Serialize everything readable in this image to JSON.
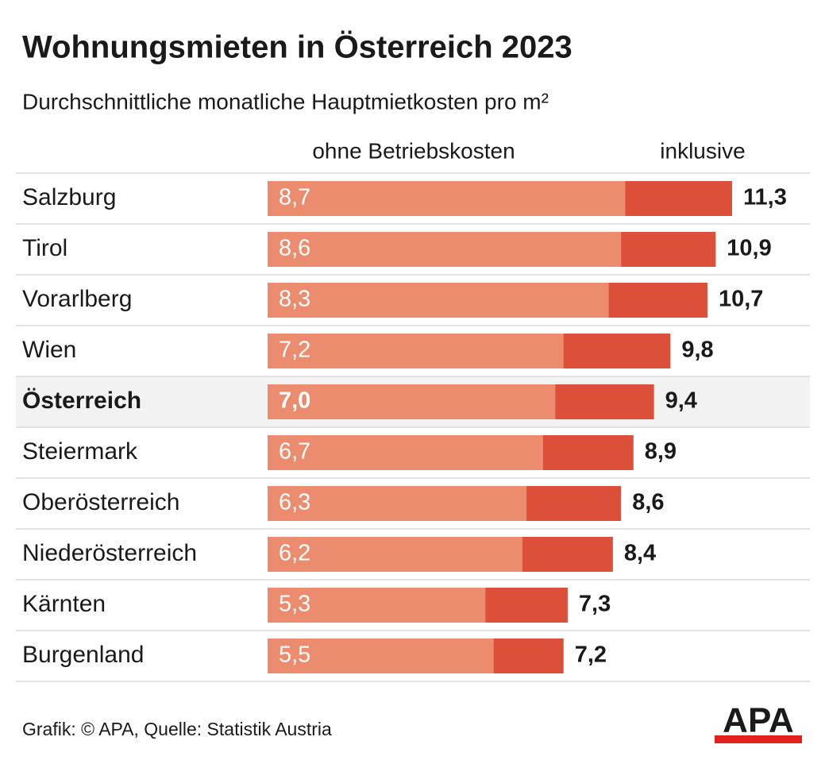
{
  "chart_data": {
    "type": "bar",
    "title": "Wohnungsmieten in Österreich 2023",
    "subtitle": "Durchschnittliche monatliche Hauptmietkosten pro m²",
    "categories": [
      "Salzburg",
      "Tirol",
      "Vorarlberg",
      "Wien",
      "Österreich",
      "Steiermark",
      "Oberösterreich",
      "Niederösterreich",
      "Kärnten",
      "Burgenland"
    ],
    "series": [
      {
        "name": "ohne Betriebskosten",
        "color": "#eb8c6e",
        "values": [
          8.7,
          8.6,
          8.3,
          7.2,
          7.0,
          6.7,
          6.3,
          6.2,
          5.3,
          5.5
        ],
        "value_labels": [
          "8,7",
          "8,6",
          "8,3",
          "7,2",
          "7,0",
          "6,7",
          "6,3",
          "6,2",
          "5,3",
          "5,5"
        ]
      },
      {
        "name": "inklusive",
        "color": "#dc4f38",
        "values": [
          11.3,
          10.9,
          10.7,
          9.8,
          9.4,
          8.9,
          8.6,
          8.4,
          7.3,
          7.2
        ],
        "value_labels": [
          "11,3",
          "10,9",
          "10,7",
          "9,8",
          "9,4",
          "8,9",
          "8,6",
          "8,4",
          "7,3",
          "7,2"
        ]
      }
    ],
    "highlight": 4,
    "source": "Grafik: © APA, Quelle: Statistik Austria",
    "logo": "APA"
  }
}
